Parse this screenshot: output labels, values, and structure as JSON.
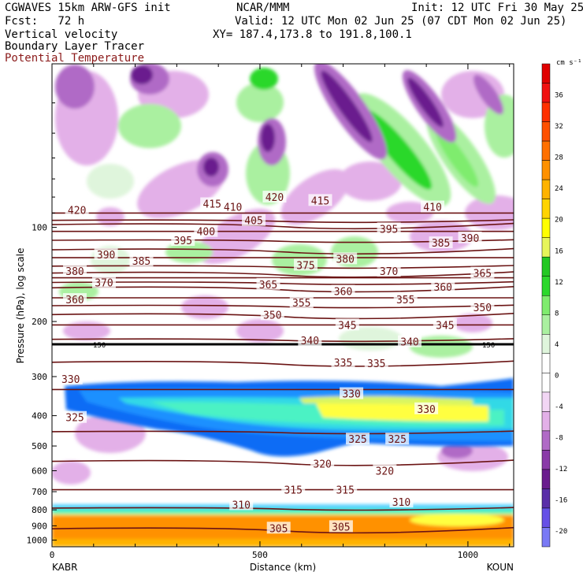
{
  "header": {
    "model": "CGWAVES 15km ARW-GFS init",
    "org": "NCAR/MMM",
    "init": "Init: 12 UTC Fri 30 May 25",
    "fcst": "Fcst:   72 h",
    "valid": "Valid: 12 UTC Mon 02 Jun 25 (07 CDT Mon 02 Jun 25)",
    "field1": "Vertical velocity",
    "field2": "Boundary Layer Tracer",
    "field3": "Potential Temperature",
    "xy": "XY= 187.4,173.8 to 191.8,100.1"
  },
  "colors": {
    "theta": "#6b1414",
    "text_dark_red": "#8b1a1a"
  },
  "chart_data": {
    "type": "heatmap",
    "ylabel": "Pressure (hPa), log scale",
    "xlabel": "Distance (km)",
    "x_start_label": "KABR",
    "x_end_label": "KOUN",
    "xlim": [
      0,
      1110
    ],
    "ylim_hpa": [
      1050,
      30
    ],
    "y_scale": "log",
    "x_ticks": [
      0,
      500,
      1000
    ],
    "y_ticks": [
      100,
      200,
      300,
      400,
      500,
      600,
      700,
      800,
      900,
      1000
    ],
    "colorbar": {
      "units": "cm s⁻¹",
      "labels": [
        -20,
        -16,
        -12,
        -8,
        -4,
        0,
        4,
        8,
        12,
        16,
        20,
        24,
        28,
        32,
        36
      ],
      "colors": [
        "#7a7af5",
        "#6650e6",
        "#5a2ea8",
        "#6a1c8e",
        "#8a3aa8",
        "#b06ac6",
        "#e3b0e8",
        "#f2d6f4",
        "#ffffff",
        "#ffffff",
        "#dff5dc",
        "#aaf0a0",
        "#7fec6e",
        "#2bd82b",
        "#22c822",
        "#e6f55a",
        "#ffff00",
        "#ffd400",
        "#ffb300",
        "#ff9100",
        "#ff7000",
        "#ff5000",
        "#ff3000",
        "#f01010",
        "#e00000"
      ]
    },
    "theta_lines": [
      {
        "label": "420",
        "p": 90
      },
      {
        "label": "415",
        "p": 95
      },
      {
        "label": "410",
        "p": 98
      },
      {
        "label": "405",
        "p": 103
      },
      {
        "label": "400",
        "p": 110
      },
      {
        "label": "395",
        "p": 118
      },
      {
        "label": "390",
        "p": 125
      },
      {
        "label": "385",
        "p": 133
      },
      {
        "label": "380",
        "p": 140
      },
      {
        "label": "375",
        "p": 145
      },
      {
        "label": "370",
        "p": 150
      },
      {
        "label": "365",
        "p": 156
      },
      {
        "label": "360",
        "p": 168
      },
      {
        "label": "355",
        "p": 178
      },
      {
        "label": "350",
        "p": 190
      },
      {
        "label": "345",
        "p": 205
      },
      {
        "label": "340",
        "p": 228
      },
      {
        "label": "335",
        "p": 270
      },
      {
        "label": "330",
        "p": 330
      },
      {
        "label": "325",
        "p": 450
      },
      {
        "label": "320",
        "p": 560
      },
      {
        "label": "315",
        "p": 690
      },
      {
        "label": "310",
        "p": 790
      },
      {
        "label": "305",
        "p": 920
      }
    ],
    "tropopause_label": "150",
    "theta_label_positions": [
      {
        "label": "420",
        "x": 60,
        "p": 88
      },
      {
        "label": "415",
        "x": 385,
        "p": 84
      },
      {
        "label": "420",
        "x": 535,
        "p": 80
      },
      {
        "label": "415",
        "x": 645,
        "p": 82
      },
      {
        "label": "410",
        "x": 435,
        "p": 86
      },
      {
        "label": "410",
        "x": 915,
        "p": 86
      },
      {
        "label": "405",
        "x": 485,
        "p": 95
      },
      {
        "label": "400",
        "x": 370,
        "p": 103
      },
      {
        "label": "395",
        "x": 315,
        "p": 110
      },
      {
        "label": "395",
        "x": 810,
        "p": 101
      },
      {
        "label": "390",
        "x": 130,
        "p": 122
      },
      {
        "label": "390",
        "x": 1005,
        "p": 108
      },
      {
        "label": "385",
        "x": 215,
        "p": 128
      },
      {
        "label": "385",
        "x": 935,
        "p": 112
      },
      {
        "label": "380",
        "x": 55,
        "p": 138
      },
      {
        "label": "380",
        "x": 705,
        "p": 126
      },
      {
        "label": "375",
        "x": 610,
        "p": 132
      },
      {
        "label": "370",
        "x": 125,
        "p": 150
      },
      {
        "label": "370",
        "x": 810,
        "p": 138
      },
      {
        "label": "365",
        "x": 520,
        "p": 152
      },
      {
        "label": "365",
        "x": 1035,
        "p": 140
      },
      {
        "label": "360",
        "x": 55,
        "p": 170
      },
      {
        "label": "360",
        "x": 700,
        "p": 160
      },
      {
        "label": "360",
        "x": 940,
        "p": 155
      },
      {
        "label": "355",
        "x": 600,
        "p": 174
      },
      {
        "label": "355",
        "x": 850,
        "p": 170
      },
      {
        "label": "350",
        "x": 530,
        "p": 190
      },
      {
        "label": "350",
        "x": 1035,
        "p": 180
      },
      {
        "label": "345",
        "x": 710,
        "p": 205
      },
      {
        "label": "345",
        "x": 945,
        "p": 205
      },
      {
        "label": "340",
        "x": 620,
        "p": 230
      },
      {
        "label": "340",
        "x": 860,
        "p": 232
      },
      {
        "label": "335",
        "x": 700,
        "p": 270
      },
      {
        "label": "335",
        "x": 780,
        "p": 272
      },
      {
        "label": "330",
        "x": 45,
        "p": 305
      },
      {
        "label": "330",
        "x": 720,
        "p": 340
      },
      {
        "label": "330",
        "x": 900,
        "p": 380
      },
      {
        "label": "325",
        "x": 55,
        "p": 405
      },
      {
        "label": "325",
        "x": 735,
        "p": 475
      },
      {
        "label": "325",
        "x": 830,
        "p": 475
      },
      {
        "label": "320",
        "x": 650,
        "p": 570
      },
      {
        "label": "320",
        "x": 800,
        "p": 600
      },
      {
        "label": "315",
        "x": 580,
        "p": 690
      },
      {
        "label": "315",
        "x": 705,
        "p": 690
      },
      {
        "label": "310",
        "x": 455,
        "p": 770
      },
      {
        "label": "310",
        "x": 840,
        "p": 755
      },
      {
        "label": "305",
        "x": 545,
        "p": 915
      },
      {
        "label": "305",
        "x": 695,
        "p": 905
      }
    ]
  }
}
